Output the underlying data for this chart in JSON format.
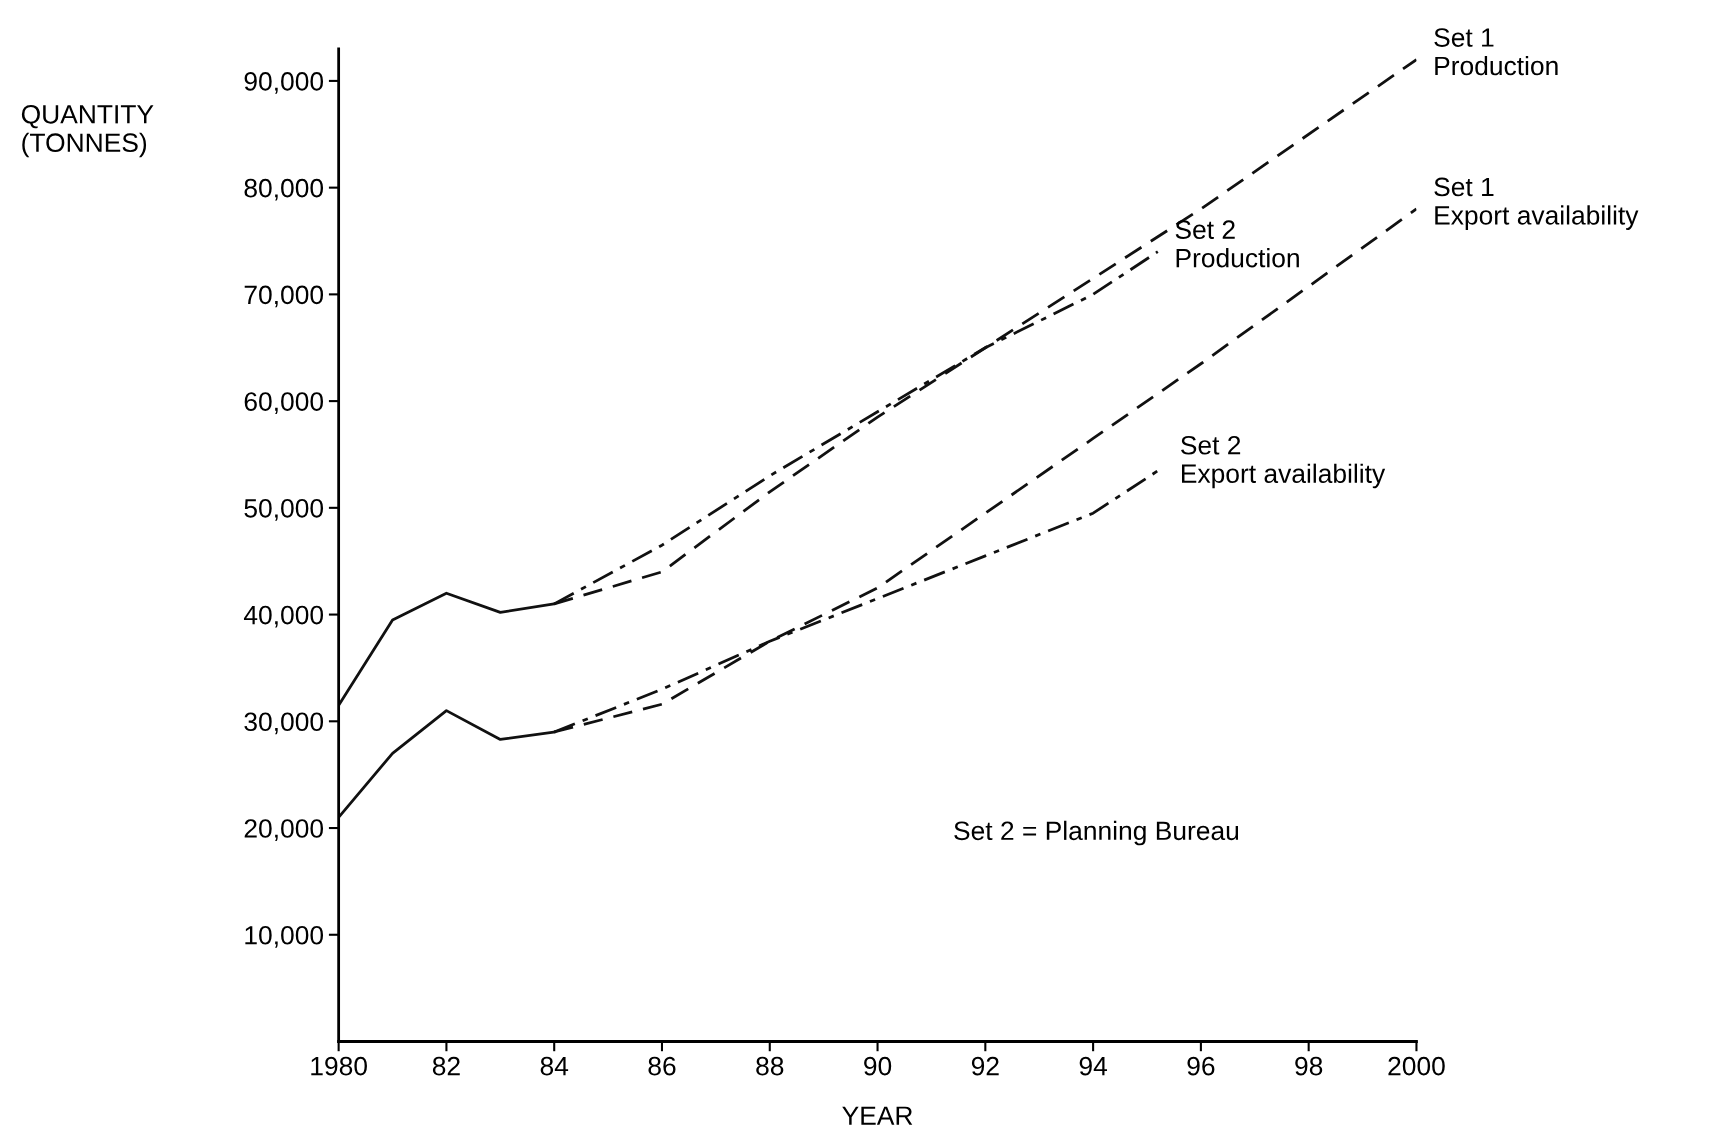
{
  "chart_data": {
    "type": "line",
    "xlabel": "YEAR",
    "ylabel": "QUANTITY\n(TONNES)",
    "xlim": [
      1980,
      2000
    ],
    "ylim": [
      0,
      93000
    ],
    "xticks": [
      1980,
      {
        "value": 1982,
        "label": "82"
      },
      {
        "value": 1984,
        "label": "84"
      },
      {
        "value": 1986,
        "label": "86"
      },
      {
        "value": 1988,
        "label": "88"
      },
      {
        "value": 1990,
        "label": "90"
      },
      {
        "value": 1992,
        "label": "92"
      },
      {
        "value": 1994,
        "label": "94"
      },
      {
        "value": 1996,
        "label": "96"
      },
      {
        "value": 1998,
        "label": "98"
      },
      2000
    ],
    "yticks": [
      {
        "value": 10000,
        "label": "10,000"
      },
      {
        "value": 20000,
        "label": "20,000"
      },
      {
        "value": 30000,
        "label": "30,000"
      },
      {
        "value": 40000,
        "label": "40,000"
      },
      {
        "value": 50000,
        "label": "50,000"
      },
      {
        "value": 60000,
        "label": "60,000"
      },
      {
        "value": 70000,
        "label": "70,000"
      },
      {
        "value": 80000,
        "label": "80,000"
      },
      {
        "value": 90000,
        "label": "90,000"
      }
    ],
    "grid": false,
    "legend": false,
    "marker": "none",
    "series": [
      {
        "color": "#111111",
        "line_style": "solid",
        "x": [
          1980,
          1981,
          1982,
          1983,
          1984
        ],
        "values": [
          31500,
          39500,
          42000,
          40200,
          41000
        ]
      },
      {
        "color": "#111111",
        "line_style": "solid",
        "x": [
          1980,
          1981,
          1982,
          1983,
          1984
        ],
        "values": [
          21000,
          27000,
          31000,
          28300,
          29000
        ]
      },
      {
        "name": "Set 1\nProduction",
        "color": "#111111",
        "line_style": "dashed",
        "x": [
          1984,
          1986,
          1988,
          1990,
          1992,
          1994,
          1996,
          2000
        ],
        "values": [
          41000,
          44000,
          51500,
          58500,
          65000,
          71500,
          78000,
          92000
        ]
      },
      {
        "name": "Set 2\nProduction",
        "color": "#111111",
        "line_style": "dashdot",
        "x": [
          1984,
          1986,
          1988,
          1990,
          1992,
          1994,
          1995.2
        ],
        "values": [
          41000,
          46500,
          53000,
          59000,
          65000,
          70000,
          74000
        ]
      },
      {
        "name": "Set 1\nExport availability",
        "color": "#111111",
        "line_style": "dashed",
        "x": [
          1984,
          1986,
          1988,
          1990,
          1992,
          1994,
          1996,
          2000
        ],
        "values": [
          29000,
          31600,
          37500,
          42500,
          49500,
          56500,
          63500,
          78000
        ]
      },
      {
        "name": "Set 2\nExport availability",
        "color": "#111111",
        "line_style": "dashdot",
        "x": [
          1984,
          1986,
          1988,
          1990,
          1992,
          1994,
          1995.3
        ],
        "values": [
          29000,
          33000,
          37500,
          41500,
          45500,
          49500,
          53800
        ]
      }
    ],
    "annotations": [
      "Set 2 = Planning Bureau"
    ]
  }
}
